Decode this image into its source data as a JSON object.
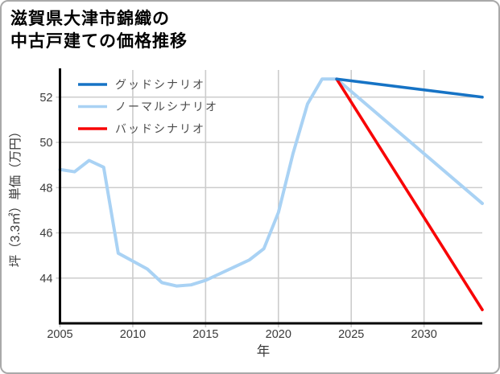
{
  "header": {
    "title_line1": "滋賀県大津市錦織の",
    "title_line2": "中古戸建ての価格推移"
  },
  "colors": {
    "good": "#1673c5",
    "normal": "#a9d2f4",
    "bad": "#f80406",
    "grid": "#cccccc",
    "axis": "#000000",
    "tick_text": "#3a3a3a",
    "legend_text": "#4a4a4a"
  },
  "chart_data": {
    "type": "line",
    "title": "滋賀県大津市錦織の中古戸建ての価格推移",
    "xlabel": "年",
    "ylabel": "坪（3.3㎡）単価（万円）",
    "xlim": [
      2005,
      2034
    ],
    "ylim": [
      42,
      53.2
    ],
    "xticks": [
      2005,
      2010,
      2015,
      2020,
      2025,
      2030
    ],
    "yticks": [
      44,
      46,
      48,
      50,
      52
    ],
    "grid": true,
    "legend_position": "upper-left",
    "draw_order": [
      1,
      2,
      0
    ],
    "series": [
      {
        "name": "グッドシナリオ",
        "color_key": "good",
        "width": 3.6,
        "x": [
          2024,
          2034
        ],
        "y": [
          52.8,
          52.0
        ]
      },
      {
        "name": "ノーマルシナリオ",
        "color_key": "normal",
        "width": 4,
        "x": [
          2005,
          2006,
          2007,
          2008,
          2009,
          2010,
          2011,
          2012,
          2013,
          2014,
          2015,
          2016,
          2017,
          2018,
          2019,
          2020,
          2021,
          2022,
          2023,
          2024,
          2034
        ],
        "y": [
          48.8,
          48.7,
          49.2,
          48.9,
          45.1,
          44.75,
          44.4,
          43.8,
          43.65,
          43.7,
          43.9,
          44.2,
          44.5,
          44.8,
          45.3,
          46.9,
          49.5,
          51.7,
          52.8,
          52.8,
          47.3
        ]
      },
      {
        "name": "バッドシナリオ",
        "color_key": "bad",
        "width": 3.6,
        "x": [
          2024,
          2034
        ],
        "y": [
          52.8,
          42.6
        ]
      }
    ]
  }
}
